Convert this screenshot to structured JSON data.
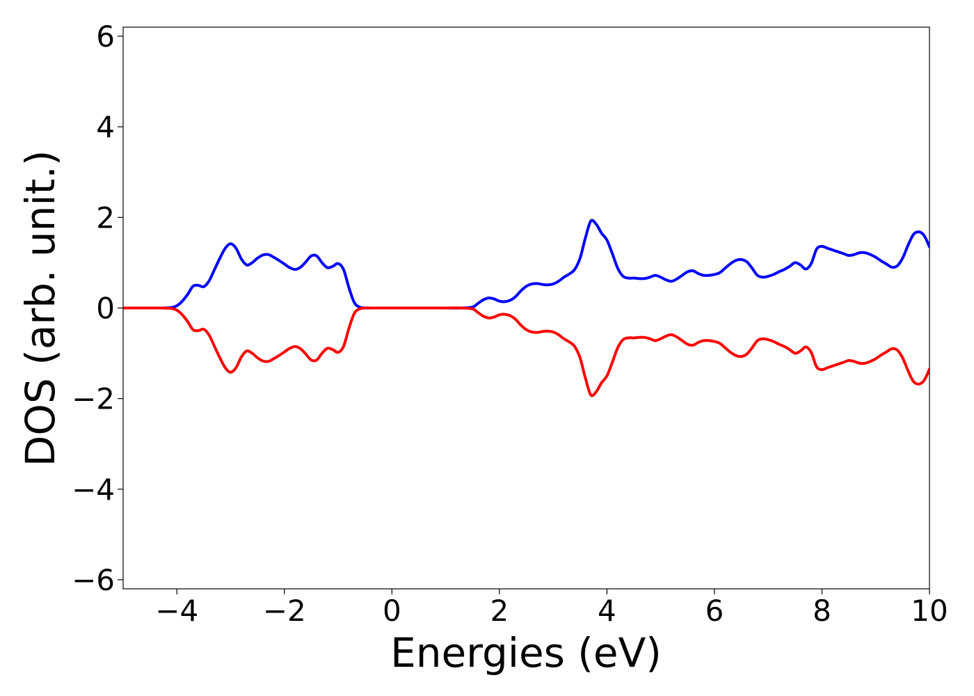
{
  "chart_data": {
    "type": "line",
    "title": "",
    "xlabel": "Energies (eV)",
    "ylabel": "DOS (arb. unit.)",
    "xlim": [
      -5,
      10
    ],
    "ylim": [
      -6.2,
      6.2
    ],
    "xticks": [
      -4,
      -2,
      0,
      2,
      4,
      6,
      8,
      10
    ],
    "xtick_labels": [
      "−4",
      "−2",
      "0",
      "2",
      "4",
      "6",
      "8",
      "10"
    ],
    "yticks": [
      -6,
      -4,
      -2,
      0,
      2,
      4,
      6
    ],
    "ytick_labels": [
      "−6",
      "−4",
      "−2",
      "0",
      "2",
      "4",
      "6"
    ],
    "grid": false,
    "series": [
      {
        "color": "#0000ff",
        "x": [
          -5,
          -4.3,
          -4.1,
          -4.0,
          -3.9,
          -3.8,
          -3.7,
          -3.6,
          -3.5,
          -3.4,
          -3.3,
          -3.2,
          -3.1,
          -3.0,
          -2.9,
          -2.8,
          -2.7,
          -2.6,
          -2.5,
          -2.4,
          -2.3,
          -2.2,
          -2.1,
          -2.0,
          -1.9,
          -1.8,
          -1.7,
          -1.6,
          -1.5,
          -1.4,
          -1.3,
          -1.2,
          -1.1,
          -1.0,
          -0.9,
          -0.8,
          -0.7,
          -0.6,
          -0.5,
          -0.4,
          0.0,
          1.0,
          1.3,
          1.5,
          1.6,
          1.7,
          1.8,
          1.9,
          2.0,
          2.1,
          2.2,
          2.3,
          2.4,
          2.5,
          2.6,
          2.7,
          2.8,
          2.9,
          3.0,
          3.1,
          3.2,
          3.3,
          3.4,
          3.5,
          3.6,
          3.7,
          3.8,
          3.9,
          4.0,
          4.1,
          4.2,
          4.3,
          4.4,
          4.5,
          4.6,
          4.7,
          4.8,
          4.9,
          5.0,
          5.1,
          5.2,
          5.3,
          5.4,
          5.5,
          5.6,
          5.7,
          5.8,
          5.9,
          6.0,
          6.1,
          6.2,
          6.3,
          6.4,
          6.5,
          6.6,
          6.7,
          6.8,
          6.9,
          7.0,
          7.1,
          7.2,
          7.3,
          7.4,
          7.5,
          7.6,
          7.7,
          7.8,
          7.9,
          8.0,
          8.1,
          8.2,
          8.3,
          8.4,
          8.5,
          8.6,
          8.7,
          8.8,
          8.9,
          9.0,
          9.1,
          9.2,
          9.3,
          9.4,
          9.5,
          9.6,
          9.7,
          9.8,
          9.9,
          10.0
        ],
        "y": [
          0,
          0,
          0.01,
          0.05,
          0.15,
          0.3,
          0.48,
          0.5,
          0.47,
          0.6,
          0.85,
          1.1,
          1.32,
          1.42,
          1.32,
          1.08,
          0.95,
          1.0,
          1.1,
          1.17,
          1.18,
          1.12,
          1.05,
          0.97,
          0.89,
          0.85,
          0.9,
          1.02,
          1.15,
          1.15,
          1.0,
          0.89,
          0.92,
          0.98,
          0.85,
          0.45,
          0.12,
          0.02,
          0.0,
          0.0,
          0.0,
          0.0,
          0.0,
          0.02,
          0.1,
          0.18,
          0.22,
          0.2,
          0.15,
          0.14,
          0.17,
          0.25,
          0.38,
          0.48,
          0.53,
          0.54,
          0.52,
          0.51,
          0.53,
          0.59,
          0.68,
          0.75,
          0.85,
          1.1,
          1.55,
          1.92,
          1.85,
          1.65,
          1.5,
          1.2,
          0.88,
          0.7,
          0.66,
          0.66,
          0.65,
          0.65,
          0.68,
          0.72,
          0.68,
          0.62,
          0.59,
          0.64,
          0.72,
          0.8,
          0.82,
          0.76,
          0.72,
          0.72,
          0.74,
          0.78,
          0.88,
          0.98,
          1.05,
          1.07,
          1.02,
          0.88,
          0.72,
          0.68,
          0.7,
          0.74,
          0.8,
          0.85,
          0.92,
          1.0,
          0.95,
          0.86,
          0.98,
          1.3,
          1.36,
          1.32,
          1.28,
          1.24,
          1.2,
          1.16,
          1.18,
          1.22,
          1.22,
          1.18,
          1.12,
          1.04,
          0.97,
          0.9,
          0.93,
          1.1,
          1.38,
          1.62,
          1.68,
          1.6,
          1.35
        ]
      },
      {
        "color": "#ff0000",
        "x": [
          -5,
          -4.3,
          -4.1,
          -4.0,
          -3.9,
          -3.8,
          -3.7,
          -3.6,
          -3.5,
          -3.4,
          -3.3,
          -3.2,
          -3.1,
          -3.0,
          -2.9,
          -2.8,
          -2.7,
          -2.6,
          -2.5,
          -2.4,
          -2.3,
          -2.2,
          -2.1,
          -2.0,
          -1.9,
          -1.8,
          -1.7,
          -1.6,
          -1.5,
          -1.4,
          -1.3,
          -1.2,
          -1.1,
          -1.0,
          -0.9,
          -0.8,
          -0.7,
          -0.6,
          -0.5,
          -0.4,
          0.0,
          1.0,
          1.3,
          1.5,
          1.6,
          1.7,
          1.8,
          1.9,
          2.0,
          2.1,
          2.2,
          2.3,
          2.4,
          2.5,
          2.6,
          2.7,
          2.8,
          2.9,
          3.0,
          3.1,
          3.2,
          3.3,
          3.4,
          3.5,
          3.6,
          3.7,
          3.8,
          3.9,
          4.0,
          4.1,
          4.2,
          4.3,
          4.4,
          4.5,
          4.6,
          4.7,
          4.8,
          4.9,
          5.0,
          5.1,
          5.2,
          5.3,
          5.4,
          5.5,
          5.6,
          5.7,
          5.8,
          5.9,
          6.0,
          6.1,
          6.2,
          6.3,
          6.4,
          6.5,
          6.6,
          6.7,
          6.8,
          6.9,
          7.0,
          7.1,
          7.2,
          7.3,
          7.4,
          7.5,
          7.6,
          7.7,
          7.8,
          7.9,
          8.0,
          8.1,
          8.2,
          8.3,
          8.4,
          8.5,
          8.6,
          8.7,
          8.8,
          8.9,
          9.0,
          9.1,
          9.2,
          9.3,
          9.4,
          9.5,
          9.6,
          9.7,
          9.8,
          9.9,
          10.0
        ],
        "y": [
          0,
          0,
          -0.01,
          -0.05,
          -0.15,
          -0.3,
          -0.48,
          -0.5,
          -0.47,
          -0.6,
          -0.85,
          -1.1,
          -1.32,
          -1.42,
          -1.32,
          -1.08,
          -0.95,
          -1.0,
          -1.1,
          -1.17,
          -1.18,
          -1.12,
          -1.05,
          -0.97,
          -0.89,
          -0.85,
          -0.9,
          -1.02,
          -1.15,
          -1.15,
          -1.0,
          -0.89,
          -0.92,
          -0.98,
          -0.85,
          -0.45,
          -0.12,
          -0.02,
          0.0,
          0.0,
          0.0,
          0.0,
          0.0,
          -0.02,
          -0.1,
          -0.18,
          -0.22,
          -0.2,
          -0.15,
          -0.14,
          -0.17,
          -0.25,
          -0.38,
          -0.48,
          -0.53,
          -0.54,
          -0.52,
          -0.51,
          -0.53,
          -0.59,
          -0.68,
          -0.75,
          -0.85,
          -1.1,
          -1.55,
          -1.92,
          -1.85,
          -1.65,
          -1.5,
          -1.2,
          -0.88,
          -0.7,
          -0.66,
          -0.66,
          -0.65,
          -0.65,
          -0.68,
          -0.72,
          -0.68,
          -0.62,
          -0.59,
          -0.64,
          -0.72,
          -0.8,
          -0.82,
          -0.76,
          -0.72,
          -0.72,
          -0.74,
          -0.78,
          -0.88,
          -0.98,
          -1.05,
          -1.07,
          -1.02,
          -0.88,
          -0.72,
          -0.68,
          -0.7,
          -0.74,
          -0.8,
          -0.85,
          -0.92,
          -1.0,
          -0.95,
          -0.86,
          -0.98,
          -1.3,
          -1.36,
          -1.32,
          -1.28,
          -1.24,
          -1.2,
          -1.16,
          -1.18,
          -1.22,
          -1.22,
          -1.18,
          -1.12,
          -1.04,
          -0.97,
          -0.9,
          -0.93,
          -1.1,
          -1.38,
          -1.62,
          -1.68,
          -1.6,
          -1.35
        ]
      }
    ]
  }
}
